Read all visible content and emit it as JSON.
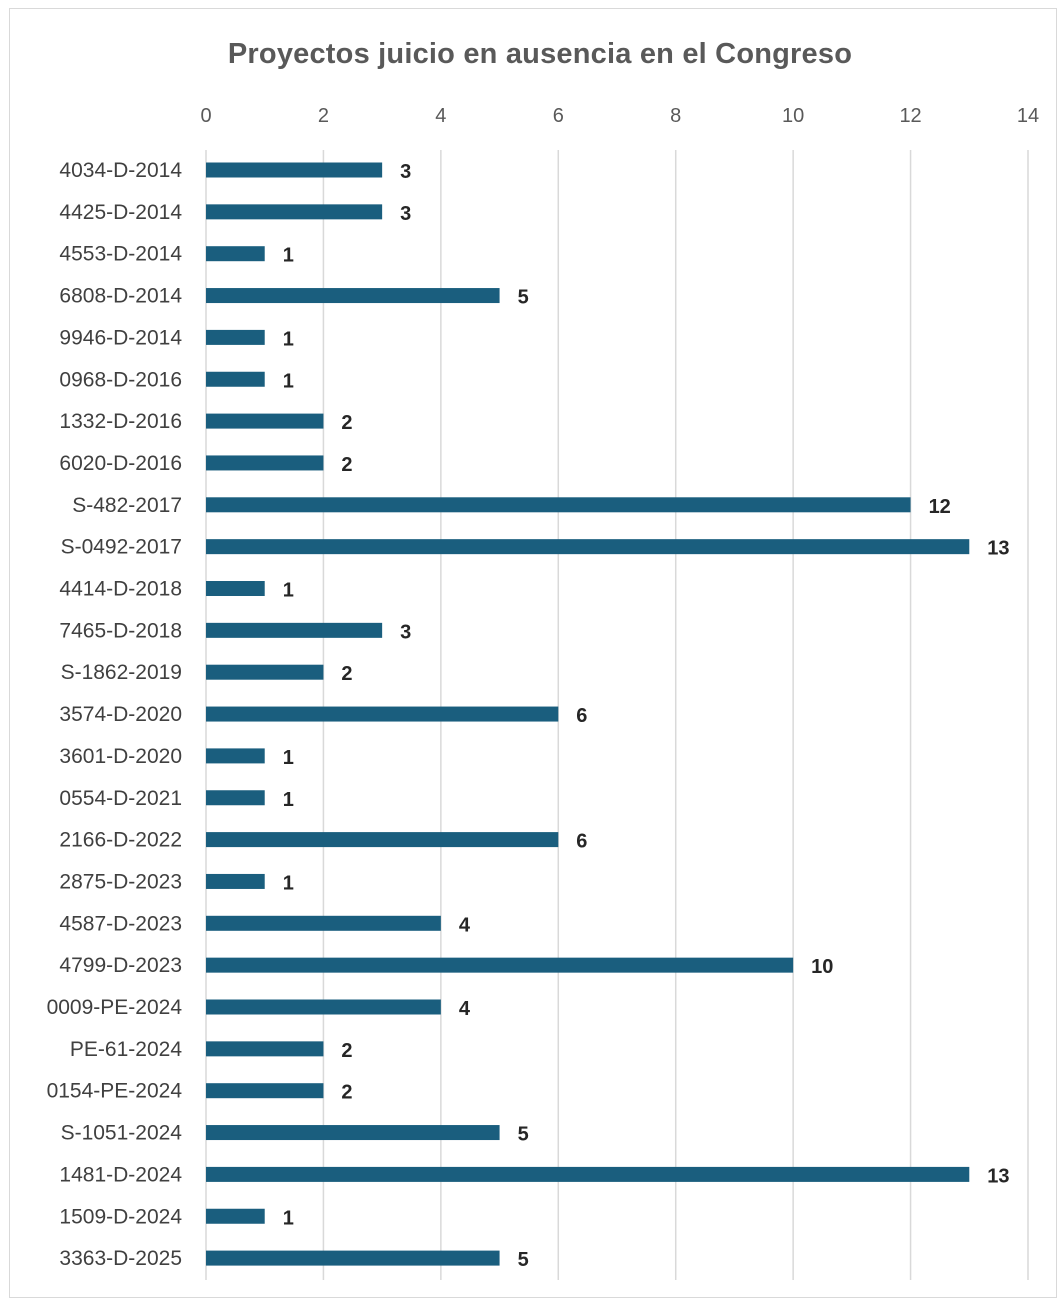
{
  "chart_data": {
    "type": "bar",
    "orientation": "horizontal",
    "title": "Proyectos juicio en ausencia  en el Congreso",
    "xlabel": "",
    "ylabel": "",
    "xlim": [
      0,
      14
    ],
    "x_ticks": [
      0,
      2,
      4,
      6,
      8,
      10,
      12,
      14
    ],
    "x_axis_position": "top",
    "grid": true,
    "data_labels": true,
    "bar_color": "#1a5e7e",
    "categories": [
      "4034-D-2014",
      "4425-D-2014",
      "4553-D-2014",
      "6808-D-2014",
      "9946-D-2014",
      "0968-D-2016",
      "1332-D-2016",
      "6020-D-2016",
      "S-482-2017",
      "S-0492-2017",
      "4414-D-2018",
      "7465-D-2018",
      "S-1862-2019",
      "3574-D-2020",
      "3601-D-2020",
      "0554-D-2021",
      "2166-D-2022",
      "2875-D-2023",
      "4587-D-2023",
      "4799-D-2023",
      "0009-PE-2024",
      "PE-61-2024",
      "0154-PE-2024",
      "S-1051-2024",
      "1481-D-2024",
      "1509-D-2024",
      "3363-D-2025"
    ],
    "values": [
      3,
      3,
      1,
      5,
      1,
      1,
      2,
      2,
      12,
      13,
      1,
      3,
      2,
      6,
      1,
      1,
      6,
      1,
      4,
      10,
      4,
      2,
      2,
      5,
      13,
      1,
      5
    ]
  }
}
